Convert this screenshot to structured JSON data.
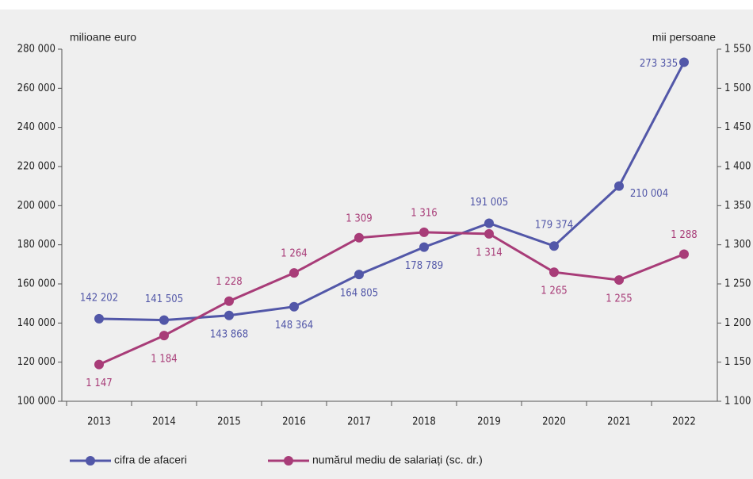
{
  "chart_data": {
    "type": "line",
    "y_label": "milioane euro",
    "y2_label": "mii persoane",
    "categories": [
      "2013",
      "2014",
      "2015",
      "2016",
      "2017",
      "2018",
      "2019",
      "2020",
      "2021",
      "2022"
    ],
    "series": [
      {
        "name": "cifra de afaceri",
        "color": "#5257a8",
        "values": [
          142202,
          141505,
          143868,
          148364,
          164805,
          178789,
          191005,
          179374,
          210004,
          273335
        ],
        "value_labels": [
          "142 202",
          "141 505",
          "143 868",
          "148 364",
          "164 805",
          "178 789",
          "191 005",
          "179 374",
          "210 004",
          "273 335"
        ]
      },
      {
        "name": "numărul mediu de salariați (sc. dr.)",
        "color": "#a83c78",
        "axis": "y2",
        "values": [
          1147,
          1184,
          1228,
          1264,
          1309,
          1316,
          1314,
          1265,
          1255,
          1288
        ],
        "value_labels": [
          "1 147",
          "1 184",
          "1 228",
          "1 264",
          "1 309",
          "1 316",
          "1 314",
          "1 265",
          "1 255",
          "1 288"
        ]
      }
    ],
    "ylim": [
      100000,
      280000
    ],
    "yticks": [
      {
        "value": 100000,
        "label": "100 000"
      },
      {
        "value": 120000,
        "label": "120 000"
      },
      {
        "value": 140000,
        "label": "140 000"
      },
      {
        "value": 160000,
        "label": "160 000"
      },
      {
        "value": 180000,
        "label": "180 000"
      },
      {
        "value": 200000,
        "label": "200 000"
      },
      {
        "value": 220000,
        "label": "220 000"
      },
      {
        "value": 240000,
        "label": "240 000"
      },
      {
        "value": 260000,
        "label": "260 000"
      },
      {
        "value": 280000,
        "label": "280 000"
      }
    ],
    "y2lim": [
      1100,
      1550
    ],
    "y2ticks": [
      {
        "value": 1100,
        "label": "1 100"
      },
      {
        "value": 1150,
        "label": "1 150"
      },
      {
        "value": 1200,
        "label": "1 200"
      },
      {
        "value": 1250,
        "label": "1 250"
      },
      {
        "value": 1300,
        "label": "1 300"
      },
      {
        "value": 1350,
        "label": "1 350"
      },
      {
        "value": 1400,
        "label": "1 400"
      },
      {
        "value": 1450,
        "label": "1 450"
      },
      {
        "value": 1500,
        "label": "1 500"
      },
      {
        "value": 1550,
        "label": "1 550"
      }
    ],
    "grid": false,
    "legend": "bottom"
  }
}
